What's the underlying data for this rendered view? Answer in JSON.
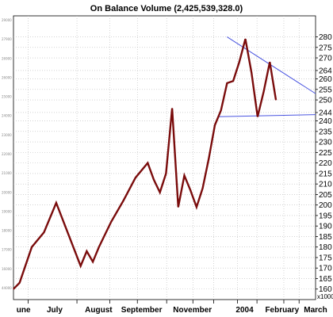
{
  "chart_data": {
    "type": "line",
    "title": "On Balance Volume (2,425,539,328.0)",
    "y_unit_label": "x1000",
    "ylim": [
      155,
      290
    ],
    "yticks": [
      160,
      165,
      170,
      175,
      180,
      185,
      190,
      195,
      200,
      205,
      210,
      215,
      220,
      225,
      230,
      235,
      240,
      244,
      250,
      255,
      260,
      264,
      270,
      275,
      280
    ],
    "faint_ticks": [
      "29000",
      "27900",
      "26900",
      "26000",
      "25000",
      "24000",
      "23000",
      "22000",
      "21000",
      "20000",
      "19000",
      "18000",
      "17000",
      "16000",
      "44000"
    ],
    "month_labels": [
      "une",
      "July",
      "August",
      "September",
      "November",
      "2004",
      "February",
      "March"
    ],
    "x_range": [
      0,
      49.5
    ],
    "x_tick_positions": [
      2.4,
      10.4,
      15.8,
      20.3,
      25.1,
      29.4,
      32.8,
      36.7,
      39.9,
      44.3,
      46.8
    ],
    "month_label_positions": [
      2.2,
      9.0,
      18.6,
      28.0,
      39.1,
      50.5,
      58.7,
      66.0
    ],
    "series": [
      {
        "color": "#7a0c0c",
        "x": [
          0,
          1,
          3,
          5,
          7,
          9,
          11,
          12,
          13,
          14,
          16,
          18,
          20,
          22,
          23,
          24,
          25,
          26,
          27,
          28,
          29,
          30,
          31,
          32,
          33,
          34,
          35,
          36,
          37,
          38,
          39,
          40,
          41,
          42,
          43
        ],
        "y": [
          160,
          163,
          180,
          187,
          201,
          186,
          171,
          178,
          173,
          180,
          192,
          202,
          213,
          220,
          212,
          206,
          215,
          246,
          199,
          214,
          207,
          199,
          208,
          222,
          238,
          245,
          258,
          259,
          268,
          279,
          263,
          242,
          254,
          268,
          250
        ]
      }
    ],
    "trendlines": [
      {
        "color": "#4a55e0",
        "x": [
          35,
          49.5
        ],
        "y": [
          280,
          253
        ]
      },
      {
        "color": "#4a55e0",
        "x": [
          33.5,
          49.5
        ],
        "y": [
          242,
          243
        ]
      }
    ]
  }
}
